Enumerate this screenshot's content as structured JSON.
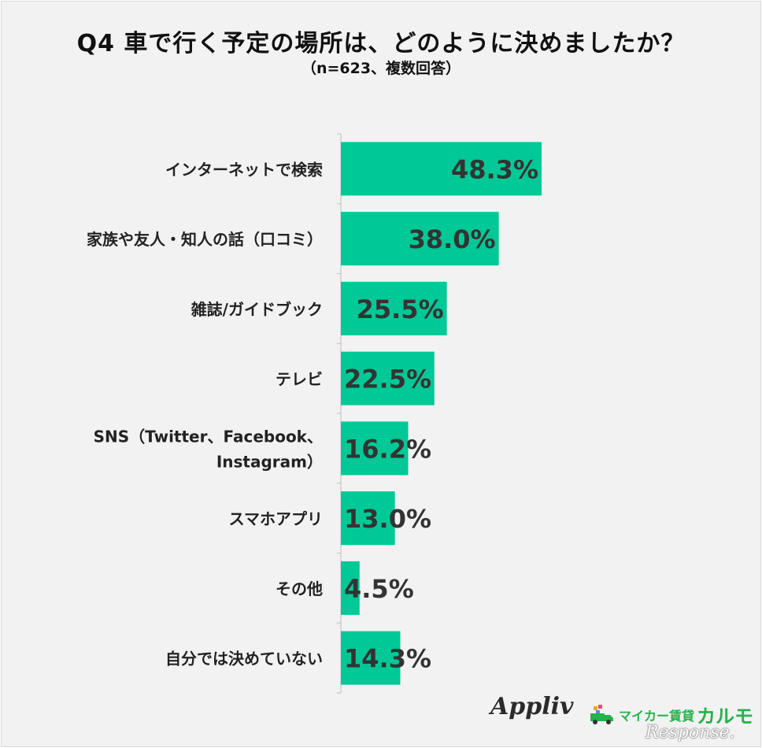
{
  "chart_data": {
    "type": "bar",
    "orientation": "horizontal",
    "title": "Q4 車で行く予定の場所は、どのように決めましたか？",
    "subtitle": "（n=623、複数回答）",
    "categories": [
      [
        "インターネットで検索"
      ],
      [
        "家族や友人・知人の話（口コミ）"
      ],
      [
        "雑誌/ガイドブック"
      ],
      [
        "テレビ"
      ],
      [
        "SNS（Twitter、Facebook、",
        "Instagram）"
      ],
      [
        "スマホアプリ"
      ],
      [
        "その他"
      ],
      [
        "自分では決めていない"
      ]
    ],
    "values": [
      48.3,
      38.0,
      25.5,
      22.5,
      16.2,
      13.0,
      4.5,
      14.3
    ],
    "value_labels": [
      "48.3%",
      "38.0%",
      "25.5%",
      "22.5%",
      "16.2%",
      "13.0%",
      "4.5%",
      "14.3%"
    ],
    "bar_color": "#00c896",
    "xlim": [
      0,
      100
    ],
    "grid": false,
    "legend": "none"
  },
  "logos": {
    "appliv": "Appliv",
    "carmo_small": "マイカー賃貸",
    "carmo_big": "カルモ",
    "response": "Response."
  }
}
